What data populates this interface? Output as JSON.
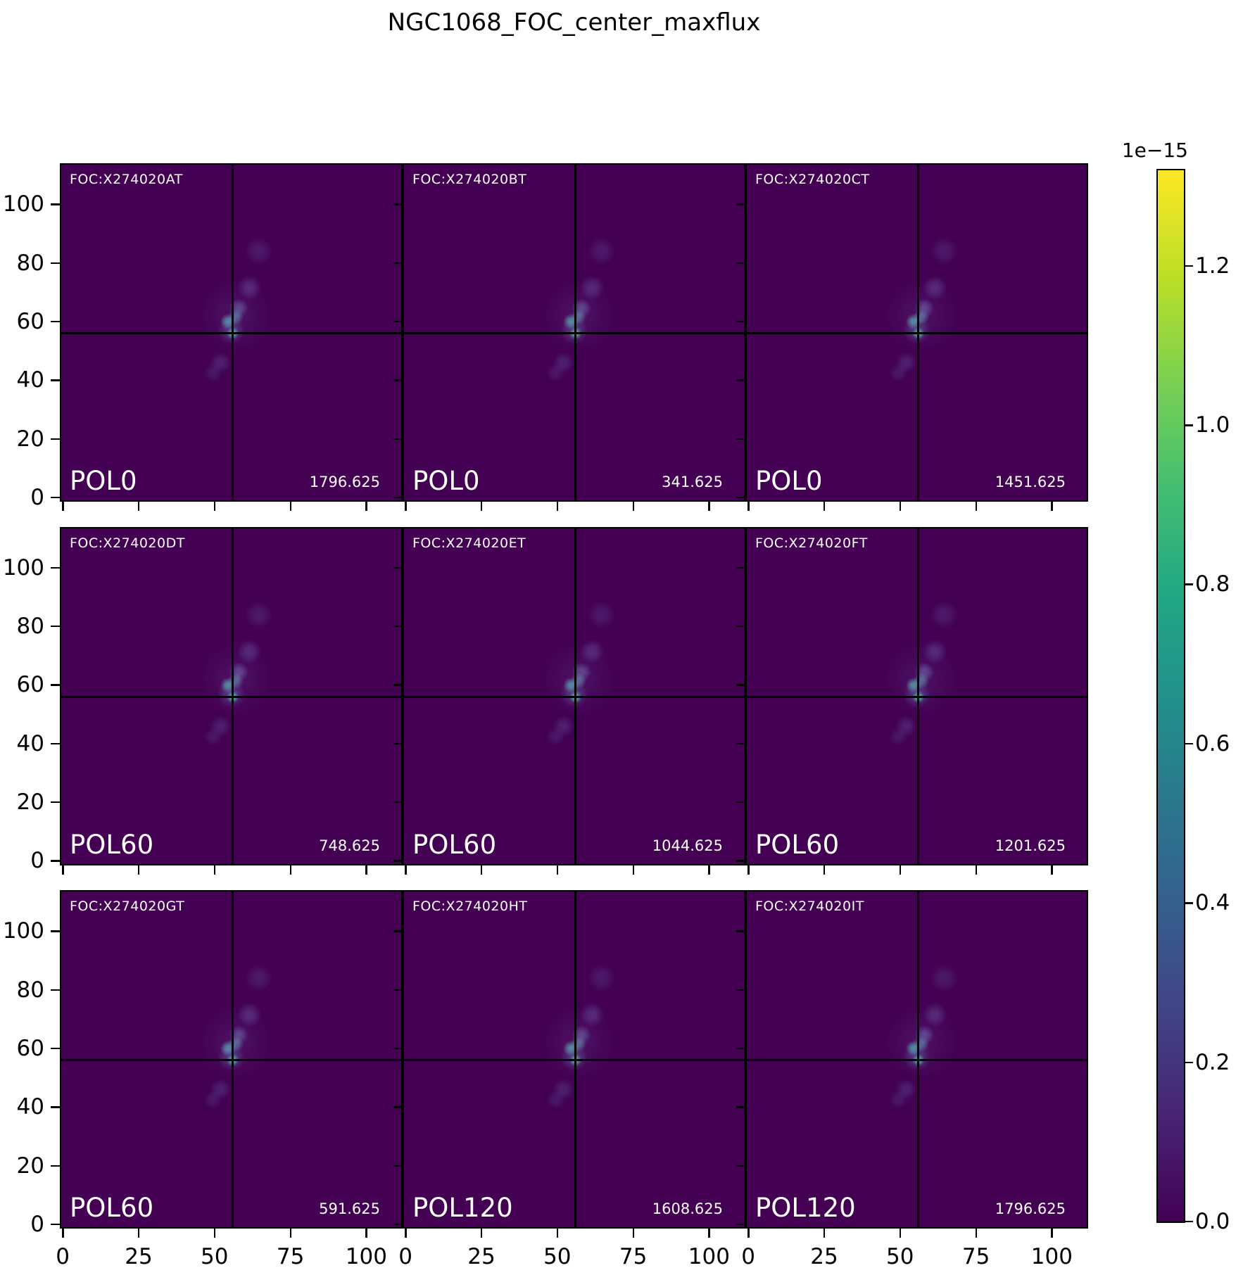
{
  "title": "NGC1068_FOC_center_maxflux",
  "chart_data": {
    "type": "heatmap",
    "title": "NGC1068_FOC_center_maxflux",
    "layout": "3x3 grid of imshow panels with shared axes, colorbar at right",
    "colormap": "viridis",
    "panels": [
      {
        "dataset": "FOC:X274020AT",
        "filter": "POL0",
        "value": "1796.625",
        "row": 0,
        "col": 0
      },
      {
        "dataset": "FOC:X274020BT",
        "filter": "POL0",
        "value": "341.625",
        "row": 0,
        "col": 1
      },
      {
        "dataset": "FOC:X274020CT",
        "filter": "POL0",
        "value": "1451.625",
        "row": 0,
        "col": 2
      },
      {
        "dataset": "FOC:X274020DT",
        "filter": "POL60",
        "value": "748.625",
        "row": 1,
        "col": 0
      },
      {
        "dataset": "FOC:X274020ET",
        "filter": "POL60",
        "value": "1044.625",
        "row": 1,
        "col": 1
      },
      {
        "dataset": "FOC:X274020FT",
        "filter": "POL60",
        "value": "1201.625",
        "row": 1,
        "col": 2
      },
      {
        "dataset": "FOC:X274020GT",
        "filter": "POL60",
        "value": "591.625",
        "row": 2,
        "col": 0
      },
      {
        "dataset": "FOC:X274020HT",
        "filter": "POL120",
        "value": "1608.625",
        "row": 2,
        "col": 1
      },
      {
        "dataset": "FOC:X274020IT",
        "filter": "POL120",
        "value": "1796.625",
        "row": 2,
        "col": 2
      }
    ],
    "x_ticks": [
      0,
      25,
      50,
      75,
      100
    ],
    "y_ticks": [
      0,
      20,
      40,
      60,
      80,
      100
    ],
    "x_range": [
      -0.5,
      111.5
    ],
    "y_range": [
      -1,
      113.5
    ],
    "crosshair": {
      "x": 56,
      "y": 56
    },
    "blobs": [
      {
        "x": 57,
        "y": 62,
        "r": 12,
        "rgb": "130,130,210",
        "a": 0.1
      },
      {
        "x": 55.5,
        "y": 57,
        "r": 4.5,
        "rgb": "100,140,195",
        "a": 0.35
      },
      {
        "x": 54.5,
        "y": 60,
        "r": 2.6,
        "rgb": "85,180,170",
        "a": 0.75
      },
      {
        "x": 57,
        "y": 61.5,
        "r": 2.6,
        "rgb": "105,175,185",
        "a": 0.55
      },
      {
        "x": 58,
        "y": 64.5,
        "r": 3.2,
        "rgb": "130,160,215",
        "a": 0.4
      },
      {
        "x": 61.5,
        "y": 71.5,
        "r": 4,
        "rgb": "110,100,175",
        "a": 0.4
      },
      {
        "x": 64.5,
        "y": 84,
        "r": 4.5,
        "rgb": "100,90,165",
        "a": 0.28
      },
      {
        "x": 52,
        "y": 46,
        "r": 3.5,
        "rgb": "95,105,175",
        "a": 0.3
      },
      {
        "x": 49.5,
        "y": 42.5,
        "r": 3,
        "rgb": "90,95,165",
        "a": 0.25
      },
      {
        "x": 56,
        "y": 56,
        "r": 2,
        "rgb": "62,196,124",
        "a": 1.0
      }
    ],
    "colorbar": {
      "offset_label": "1e−15",
      "ticks": [
        "0.0",
        "0.2",
        "0.4",
        "0.6",
        "0.8",
        "1.0",
        "1.2"
      ],
      "vmin": 0,
      "vmax": 1.32,
      "gradient_bottom_to_top": [
        "#440154",
        "#482475",
        "#414487",
        "#355f8d",
        "#2a788e",
        "#21918c",
        "#22a884",
        "#44bf70",
        "#7ad151",
        "#bddf26",
        "#fde725"
      ]
    }
  },
  "colors": {
    "background": "#ffffff",
    "panel_background": "#440153",
    "spine": "#000000",
    "panel_text": "#ffffff",
    "axis_text": "#000000"
  }
}
